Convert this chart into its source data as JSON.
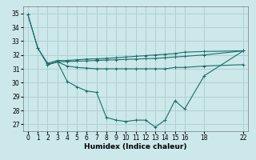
{
  "background_color": "#cce8ea",
  "grid_color": "#b0d0d4",
  "line_color": "#1a6e6a",
  "xlabel": "Humidex (Indice chaleur)",
  "xlim": [
    -0.5,
    22.5
  ],
  "ylim": [
    26.5,
    35.5
  ],
  "yticks": [
    27,
    28,
    29,
    30,
    31,
    32,
    33,
    34,
    35
  ],
  "xticks": [
    0,
    1,
    2,
    3,
    4,
    5,
    6,
    7,
    8,
    9,
    10,
    11,
    12,
    13,
    14,
    15,
    16,
    18,
    22
  ],
  "series": [
    {
      "x": [
        0,
        1,
        2,
        3,
        4,
        5,
        6,
        7,
        8,
        9,
        10,
        11,
        12,
        13,
        14,
        15,
        16,
        18,
        22
      ],
      "y": [
        34.9,
        32.5,
        31.3,
        31.5,
        30.1,
        29.7,
        29.4,
        29.3,
        27.5,
        27.3,
        27.2,
        27.3,
        27.3,
        26.8,
        27.3,
        28.7,
        28.1,
        30.5,
        32.3
      ]
    },
    {
      "x": [
        0,
        1,
        2,
        3,
        4,
        5,
        6,
        7,
        8,
        9,
        10,
        11,
        12,
        13,
        14,
        15,
        16,
        18,
        22
      ],
      "y": [
        34.9,
        32.5,
        31.4,
        31.6,
        31.6,
        31.65,
        31.7,
        31.72,
        31.75,
        31.8,
        31.85,
        31.9,
        31.95,
        32.0,
        32.05,
        32.1,
        32.2,
        32.25,
        32.3
      ]
    },
    {
      "x": [
        2,
        3,
        4,
        5,
        6,
        7,
        8,
        9,
        10,
        11,
        12,
        13,
        14,
        15,
        16,
        18,
        22
      ],
      "y": [
        31.3,
        31.5,
        31.52,
        31.55,
        31.57,
        31.6,
        31.63,
        31.65,
        31.68,
        31.7,
        31.73,
        31.75,
        31.8,
        31.85,
        31.9,
        32.0,
        32.3
      ]
    },
    {
      "x": [
        2,
        3,
        4,
        5,
        6,
        7,
        8,
        9,
        10,
        11,
        12,
        13,
        14,
        15,
        16,
        18,
        22
      ],
      "y": [
        31.3,
        31.5,
        31.2,
        31.1,
        31.05,
        31.0,
        31.0,
        31.0,
        31.0,
        31.0,
        31.0,
        31.0,
        31.0,
        31.1,
        31.1,
        31.2,
        31.3
      ]
    }
  ],
  "tick_fontsize": 5.5,
  "xlabel_fontsize": 6.5
}
